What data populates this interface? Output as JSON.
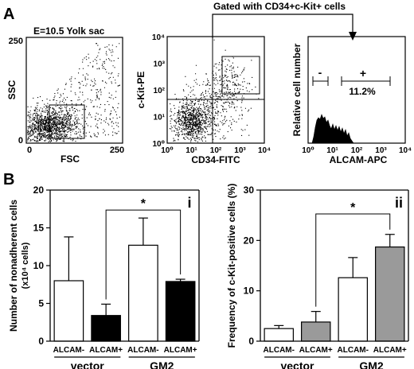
{
  "panel_a": {
    "label": "A",
    "gate_label": "Gated with CD34+c-Kit+ cells",
    "plot1": {
      "title": "E=10.5 Yolk sac",
      "xlabel": "FSC",
      "ylabel": "SSC",
      "xticks": [
        "0",
        "250"
      ],
      "yticks": [
        "0",
        "250"
      ]
    },
    "plot2": {
      "xlabel": "CD34-FITC",
      "ylabel": "c-Kit-PE",
      "xticks": [
        "10⁰",
        "10¹",
        "10²",
        "10³",
        "10⁴"
      ],
      "yticks": [
        "10⁰",
        "10¹",
        "10²",
        "10³",
        "10⁴"
      ]
    },
    "plot3": {
      "xlabel": "ALCAM-APC",
      "ylabel": "Relative cell number",
      "xticks": [
        "10⁰",
        "10¹",
        "10²",
        "10³",
        "10⁴"
      ],
      "neg_label": "-",
      "pos_label": "+",
      "percent": "11.2%"
    }
  },
  "panel_b": {
    "label": "B"
  },
  "chart_data": [
    {
      "type": "bar",
      "panel": "i",
      "ylabel": "Number of nonadherent cells",
      "ylabel_unit": "(x10⁴ cells)",
      "ylim": [
        0,
        20
      ],
      "yticks": [
        "0",
        "5",
        "10",
        "15",
        "20"
      ],
      "categories": [
        "ALCAM-",
        "ALCAM+",
        "ALCAM-",
        "ALCAM+"
      ],
      "groups": [
        "vector",
        "GM2"
      ],
      "values": [
        8.0,
        3.4,
        12.7,
        7.9
      ],
      "errors": [
        5.8,
        1.5,
        3.6,
        0.3
      ],
      "colors": [
        "#ffffff",
        "#000000",
        "#ffffff",
        "#000000"
      ],
      "significance": "*"
    },
    {
      "type": "bar",
      "panel": "ii",
      "ylabel": "Frequency of c-Kit-positive cells (%)",
      "ylim": [
        0,
        30
      ],
      "yticks": [
        "0",
        "10",
        "20",
        "30"
      ],
      "categories": [
        "ALCAM-",
        "ALCAM+",
        "ALCAM-",
        "ALCAM+"
      ],
      "groups": [
        "vector",
        "GM2"
      ],
      "values": [
        2.5,
        3.8,
        12.6,
        18.7
      ],
      "errors": [
        0.6,
        2.1,
        4.0,
        2.5
      ],
      "colors": [
        "#ffffff",
        "#9a9a9a",
        "#ffffff",
        "#9a9a9a"
      ],
      "significance": "*"
    }
  ]
}
